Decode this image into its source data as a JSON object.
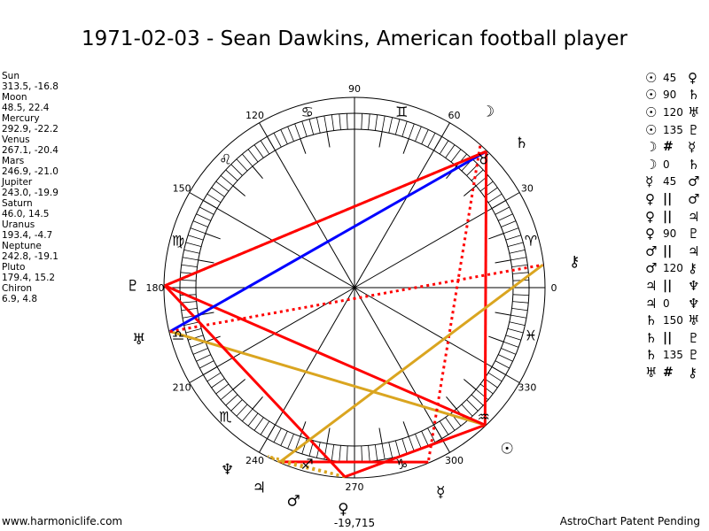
{
  "title": "1971-02-03 - Sean Dawkins, American football player",
  "planets": [
    {
      "name": "Sun",
      "value": "313.5, -16.8",
      "glyph": "☉"
    },
    {
      "name": "Moon",
      "value": "48.5, 22.4",
      "glyph": "☽"
    },
    {
      "name": "Mercury",
      "value": "292.9, -22.2",
      "glyph": "☿"
    },
    {
      "name": "Venus",
      "value": "267.1, -20.4",
      "glyph": "♀"
    },
    {
      "name": "Mars",
      "value": "246.9, -21.0",
      "glyph": "♂"
    },
    {
      "name": "Jupiter",
      "value": "243.0, -19.9",
      "glyph": "♃"
    },
    {
      "name": "Saturn",
      "value": "46.0, 14.5",
      "glyph": "♄"
    },
    {
      "name": "Uranus",
      "value": "193.4, -4.7",
      "glyph": "♅"
    },
    {
      "name": "Neptune",
      "value": "242.8, -19.1",
      "glyph": "♆"
    },
    {
      "name": "Pluto",
      "value": "179.4, 15.2",
      "glyph": "♇"
    },
    {
      "name": "Chiron",
      "value": "6.9, 4.8",
      "glyph": "⚷"
    }
  ],
  "aspects": [
    {
      "p1": "Sun",
      "g1": "☉",
      "type": "45",
      "g2": "♀",
      "p2": "Venus",
      "color": "#ff0000",
      "style": "solid"
    },
    {
      "p1": "Sun",
      "g1": "☉",
      "type": "90",
      "g2": "♄",
      "p2": "Saturn",
      "color": "#ff0000",
      "style": "solid"
    },
    {
      "p1": "Sun",
      "g1": "☉",
      "type": "120",
      "g2": "♅",
      "p2": "Uranus",
      "color": "#daa520",
      "style": "solid"
    },
    {
      "p1": "Sun",
      "g1": "☉",
      "type": "135",
      "g2": "♇",
      "p2": "Pluto",
      "color": "#ff0000",
      "style": "solid"
    },
    {
      "p1": "Moon",
      "g1": "☽",
      "type": "#",
      "g2": "☿",
      "p2": "Mercury",
      "color": "#ff0000",
      "style": "dotted"
    },
    {
      "p1": "Moon",
      "g1": "☽",
      "type": "0",
      "g2": "♄",
      "p2": "Saturn",
      "color": "#ff0000",
      "style": "none"
    },
    {
      "p1": "Mercury",
      "g1": "☿",
      "type": "45",
      "g2": "♂",
      "p2": "Mars",
      "color": "#ff0000",
      "style": "solid"
    },
    {
      "p1": "Venus",
      "g1": "♀",
      "type": "||",
      "g2": "♂",
      "p2": "Mars",
      "color": "#daa520",
      "style": "dotted"
    },
    {
      "p1": "Venus",
      "g1": "♀",
      "type": "||",
      "g2": "♃",
      "p2": "Jupiter",
      "color": "#daa520",
      "style": "dotted"
    },
    {
      "p1": "Venus",
      "g1": "♀",
      "type": "90",
      "g2": "♇",
      "p2": "Pluto",
      "color": "#ff0000",
      "style": "solid"
    },
    {
      "p1": "Mars",
      "g1": "♂",
      "type": "||",
      "g2": "♃",
      "p2": "Jupiter",
      "color": "#daa520",
      "style": "dotted"
    },
    {
      "p1": "Mars",
      "g1": "♂",
      "type": "120",
      "g2": "⚷",
      "p2": "Chiron",
      "color": "#daa520",
      "style": "solid"
    },
    {
      "p1": "Jupiter",
      "g1": "♃",
      "type": "||",
      "g2": "♆",
      "p2": "Neptune",
      "color": "#daa520",
      "style": "dotted"
    },
    {
      "p1": "Jupiter",
      "g1": "♃",
      "type": "0",
      "g2": "♆",
      "p2": "Neptune",
      "color": "#ff0000",
      "style": "none"
    },
    {
      "p1": "Saturn",
      "g1": "♄",
      "type": "150",
      "g2": "♅",
      "p2": "Uranus",
      "color": "#0000ff",
      "style": "solid"
    },
    {
      "p1": "Saturn",
      "g1": "♄",
      "type": "||",
      "g2": "♇",
      "p2": "Pluto",
      "color": "#daa520",
      "style": "dotted"
    },
    {
      "p1": "Saturn",
      "g1": "♄",
      "type": "135",
      "g2": "♇",
      "p2": "Pluto",
      "color": "#ff0000",
      "style": "solid"
    },
    {
      "p1": "Uranus",
      "g1": "♅",
      "type": "#",
      "g2": "⚷",
      "p2": "Chiron",
      "color": "#ff0000",
      "style": "dotted"
    }
  ],
  "degree_labels": [
    "0",
    "30",
    "60",
    "90",
    "120",
    "150",
    "180",
    "210",
    "240",
    "270",
    "300",
    "330"
  ],
  "zodiac": [
    "♈",
    "♉",
    "♊",
    "♋",
    "♌",
    "♍",
    "♎",
    "♏",
    "♐",
    "♑",
    "♒",
    "♓"
  ],
  "bottom_value": "-19,715",
  "footer_left": "www.harmoniclife.com",
  "footer_right": "AstroChart Patent Pending"
}
